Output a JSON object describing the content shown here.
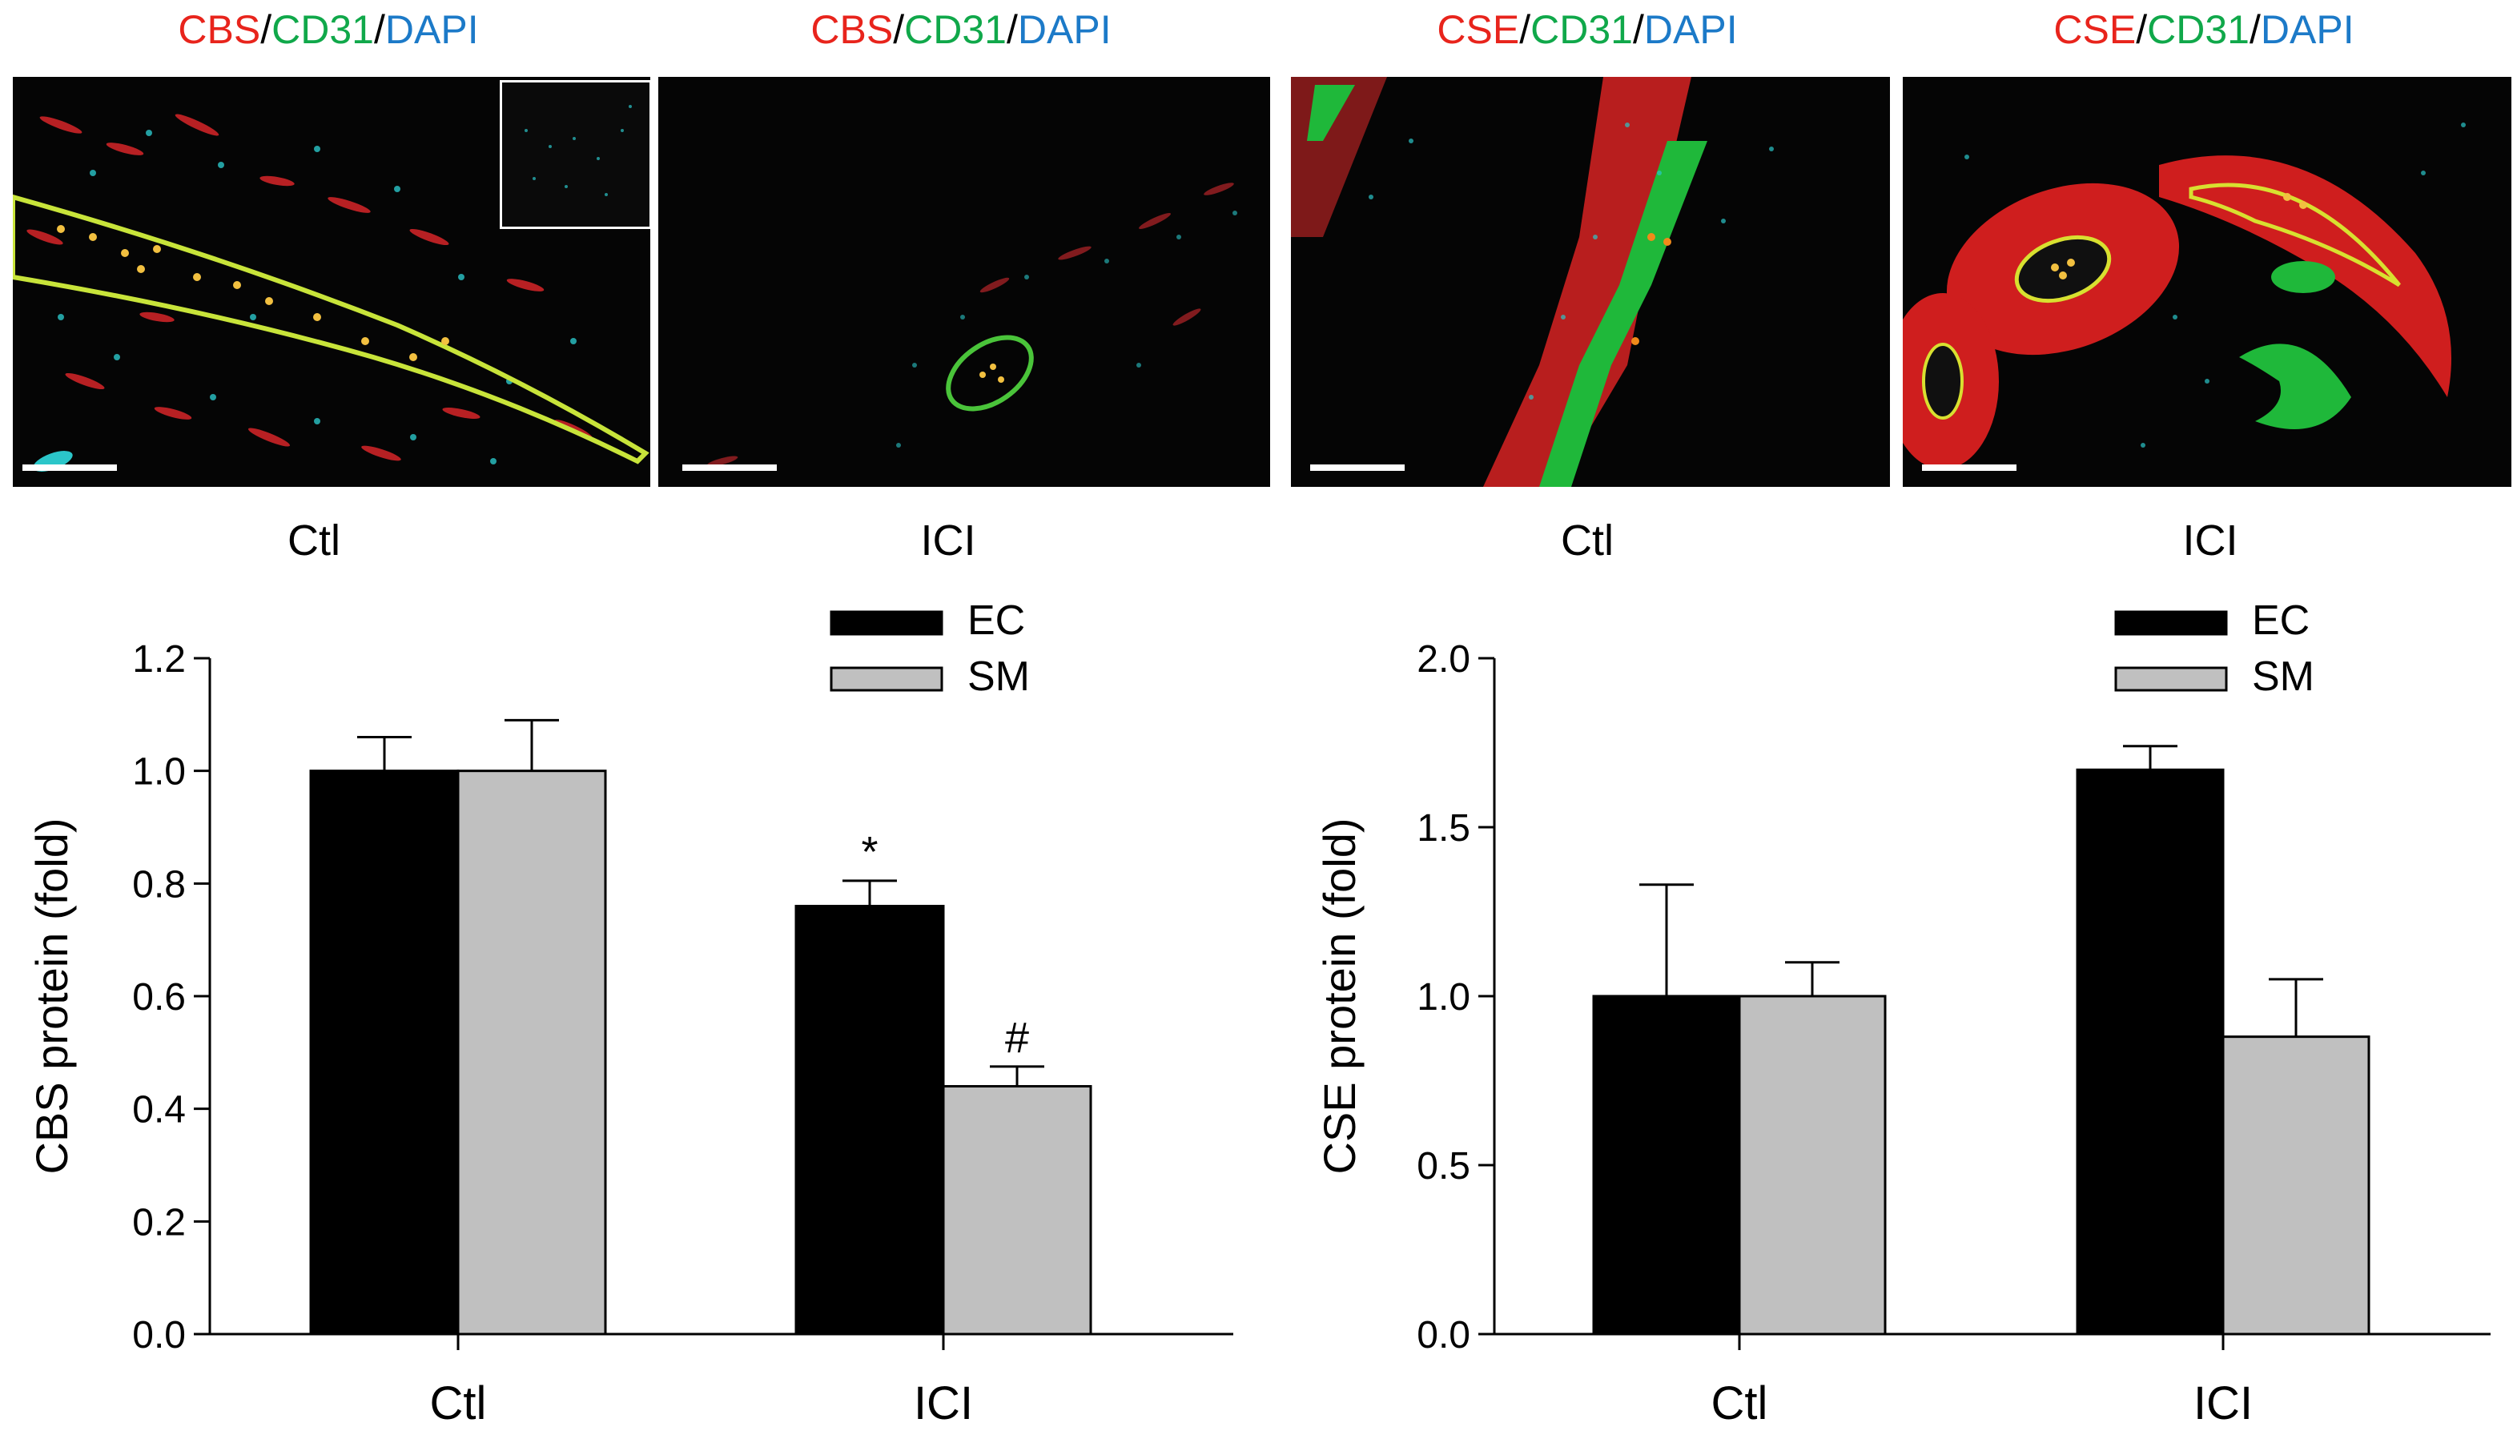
{
  "micrographs": [
    {
      "title": {
        "marker": "CBS",
        "sep1": "/",
        "cd": "CD31",
        "sep2": "/",
        "dapi": "DAPI"
      },
      "label": "Ctl",
      "has_inset": true
    },
    {
      "title": {
        "marker": "CBS",
        "sep1": "/",
        "cd": "CD31",
        "sep2": "/",
        "dapi": "DAPI"
      },
      "label": "ICI",
      "has_inset": false
    },
    {
      "title": {
        "marker": "CSE",
        "sep1": "/",
        "cd": "CD31",
        "sep2": "/",
        "dapi": "DAPI"
      },
      "label": "Ctl",
      "has_inset": false
    },
    {
      "title": {
        "marker": "CSE",
        "sep1": "/",
        "cd": "CD31",
        "sep2": "/",
        "dapi": "DAPI"
      },
      "label": "ICI",
      "has_inset": false
    }
  ],
  "colors": {
    "marker_red": "#e8241c",
    "cd31_green": "#10a84a",
    "dapi_blue": "#1c7ac8",
    "ec_bar": "#000000",
    "sm_bar": "#c0c0c0"
  },
  "chart_data": [
    {
      "type": "bar",
      "categories": [
        "Ctl",
        "ICI"
      ],
      "series": [
        {
          "name": "EC",
          "values": [
            1.0,
            0.76
          ],
          "errors": [
            0.06,
            0.045
          ]
        },
        {
          "name": "SM",
          "values": [
            1.0,
            0.44
          ],
          "errors": [
            0.09,
            0.035
          ]
        }
      ],
      "ylabel": "CBS protein (fold)",
      "xlabel": "",
      "ylim": [
        0,
        1.2
      ],
      "yticks": [
        "0.0",
        "0.2",
        "0.4",
        "0.6",
        "0.8",
        "1.0",
        "1.2"
      ],
      "annotations": [
        {
          "category": "ICI",
          "series": "EC",
          "text": "*"
        },
        {
          "category": "ICI",
          "series": "SM",
          "text": "#"
        }
      ],
      "legend": "top-right",
      "grid": false
    },
    {
      "type": "bar",
      "categories": [
        "Ctl",
        "ICI"
      ],
      "series": [
        {
          "name": "EC",
          "values": [
            1.0,
            1.67
          ],
          "errors": [
            0.33,
            0.07
          ]
        },
        {
          "name": "SM",
          "values": [
            1.0,
            0.88
          ],
          "errors": [
            0.1,
            0.17
          ]
        }
      ],
      "ylabel": "CSE protein (fold)",
      "xlabel": "",
      "ylim": [
        0,
        2.0
      ],
      "yticks": [
        "0.0",
        "0.5",
        "1.0",
        "1.5",
        "2.0"
      ],
      "annotations": [],
      "legend": "top-right",
      "grid": false
    }
  ]
}
